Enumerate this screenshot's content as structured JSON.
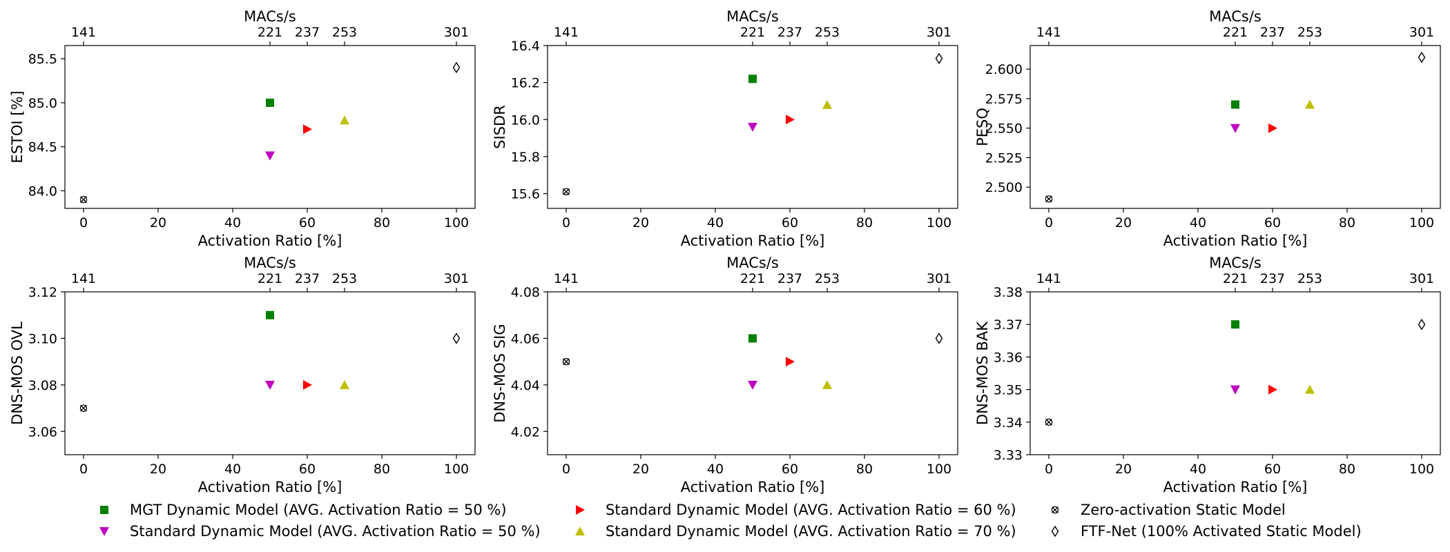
{
  "figure": {
    "legend_placement": "bottom",
    "legend_columns": 3
  },
  "series": [
    {
      "key": "mgt",
      "name": "MGT Dynamic Model (AVG. Activation Ratio = 50 %)",
      "marker": "square",
      "color": "#008000",
      "activation_ratio": 50
    },
    {
      "key": "std50",
      "name": "Standard Dynamic Model (AVG. Activation Ratio = 50 %)",
      "marker": "triangle-down",
      "color": "#bf00bf",
      "activation_ratio": 50
    },
    {
      "key": "std60",
      "name": "Standard Dynamic Model (AVG. Activation Ratio = 60 %)",
      "marker": "triangle-right",
      "color": "#ff0000",
      "activation_ratio": 60
    },
    {
      "key": "std70",
      "name": "Standard Dynamic Model (AVG. Activation Ratio = 70 %)",
      "marker": "triangle-up",
      "color": "#bfbf00",
      "activation_ratio": 70
    },
    {
      "key": "zero",
      "name": "Zero-activation Static Model",
      "marker": "x-circle",
      "color": "#000000",
      "activation_ratio": 0
    },
    {
      "key": "ftf",
      "name": "FTF-Net (100% Activated Static Model)",
      "marker": "thin-diamond",
      "color": "#000000",
      "activation_ratio": 100
    }
  ],
  "chart_data": [
    {
      "type": "scatter",
      "title": "",
      "xlabel": "Activation Ratio [%]",
      "ylabel": "ESTOI [%]",
      "top_xlabel": "MACs/s",
      "xlim": [
        -5,
        105
      ],
      "ylim": [
        83.8,
        85.65
      ],
      "xticks": [
        0,
        20,
        40,
        60,
        80,
        100
      ],
      "yticks": [
        84.0,
        84.5,
        85.0,
        85.5
      ],
      "ytick_labels": [
        "84.0",
        "84.5",
        "85.0",
        "85.5"
      ],
      "top_ticks": [
        0,
        50,
        60,
        70,
        100
      ],
      "top_tick_labels": [
        "141",
        "221",
        "237",
        "253",
        "301"
      ],
      "grid": false,
      "values": {
        "mgt": 85.0,
        "std50": 84.4,
        "std60": 84.7,
        "std70": 84.8,
        "zero": 83.9,
        "ftf": 85.4
      }
    },
    {
      "type": "scatter",
      "title": "",
      "xlabel": "Activation Ratio [%]",
      "ylabel": "SISDR",
      "top_xlabel": "MACs/s",
      "xlim": [
        -5,
        105
      ],
      "ylim": [
        15.52,
        16.4
      ],
      "xticks": [
        0,
        20,
        40,
        60,
        80,
        100
      ],
      "yticks": [
        15.6,
        15.8,
        16.0,
        16.2,
        16.4
      ],
      "ytick_labels": [
        "15.6",
        "15.8",
        "16.0",
        "16.2",
        "16.4"
      ],
      "top_ticks": [
        0,
        50,
        60,
        70,
        100
      ],
      "top_tick_labels": [
        "141",
        "221",
        "237",
        "253",
        "301"
      ],
      "grid": false,
      "values": {
        "mgt": 16.22,
        "std50": 15.96,
        "std60": 16.0,
        "std70": 16.08,
        "zero": 15.61,
        "ftf": 16.33
      }
    },
    {
      "type": "scatter",
      "title": "",
      "xlabel": "Activation Ratio [%]",
      "ylabel": "PESQ",
      "top_xlabel": "MACs/s",
      "xlim": [
        -5,
        105
      ],
      "ylim": [
        2.482,
        2.62
      ],
      "xticks": [
        0,
        20,
        40,
        60,
        80,
        100
      ],
      "yticks": [
        2.5,
        2.525,
        2.55,
        2.575,
        2.6
      ],
      "ytick_labels": [
        "2.500",
        "2.525",
        "2.550",
        "2.575",
        "2.600"
      ],
      "top_ticks": [
        0,
        50,
        60,
        70,
        100
      ],
      "top_tick_labels": [
        "141",
        "221",
        "237",
        "253",
        "301"
      ],
      "grid": false,
      "values": {
        "mgt": 2.57,
        "std50": 2.55,
        "std60": 2.55,
        "std70": 2.57,
        "zero": 2.49,
        "ftf": 2.61
      }
    },
    {
      "type": "scatter",
      "title": "",
      "xlabel": "Activation Ratio [%]",
      "ylabel": "DNS-MOS OVL",
      "top_xlabel": "MACs/s",
      "xlim": [
        -5,
        105
      ],
      "ylim": [
        3.05,
        3.12
      ],
      "xticks": [
        0,
        20,
        40,
        60,
        80,
        100
      ],
      "yticks": [
        3.06,
        3.08,
        3.1,
        3.12
      ],
      "ytick_labels": [
        "3.06",
        "3.08",
        "3.10",
        "3.12"
      ],
      "top_ticks": [
        0,
        50,
        60,
        70,
        100
      ],
      "top_tick_labels": [
        "141",
        "221",
        "237",
        "253",
        "301"
      ],
      "grid": false,
      "values": {
        "mgt": 3.11,
        "std50": 3.08,
        "std60": 3.08,
        "std70": 3.08,
        "zero": 3.07,
        "ftf": 3.1
      }
    },
    {
      "type": "scatter",
      "title": "",
      "xlabel": "Activation Ratio [%]",
      "ylabel": "DNS-MOS SIG",
      "top_xlabel": "MACs/s",
      "xlim": [
        -5,
        105
      ],
      "ylim": [
        4.01,
        4.08
      ],
      "xticks": [
        0,
        20,
        40,
        60,
        80,
        100
      ],
      "yticks": [
        4.02,
        4.04,
        4.06,
        4.08
      ],
      "ytick_labels": [
        "4.02",
        "4.04",
        "4.06",
        "4.08"
      ],
      "top_ticks": [
        0,
        50,
        60,
        70,
        100
      ],
      "top_tick_labels": [
        "141",
        "221",
        "237",
        "253",
        "301"
      ],
      "grid": false,
      "values": {
        "mgt": 4.06,
        "std50": 4.04,
        "std60": 4.05,
        "std70": 4.04,
        "zero": 4.05,
        "ftf": 4.06
      }
    },
    {
      "type": "scatter",
      "title": "",
      "xlabel": "Activation Ratio [%]",
      "ylabel": "DNS-MOS BAK",
      "top_xlabel": "MACs/s",
      "xlim": [
        -5,
        105
      ],
      "ylim": [
        3.33,
        3.38
      ],
      "xticks": [
        0,
        20,
        40,
        60,
        80,
        100
      ],
      "yticks": [
        3.33,
        3.34,
        3.35,
        3.36,
        3.37,
        3.38
      ],
      "ytick_labels": [
        "3.33",
        "3.34",
        "3.35",
        "3.36",
        "3.37",
        "3.38"
      ],
      "top_ticks": [
        0,
        50,
        60,
        70,
        100
      ],
      "top_tick_labels": [
        "141",
        "221",
        "237",
        "253",
        "301"
      ],
      "grid": false,
      "values": {
        "mgt": 3.37,
        "std50": 3.35,
        "std60": 3.35,
        "std70": 3.35,
        "zero": 3.34,
        "ftf": 3.37
      }
    }
  ]
}
